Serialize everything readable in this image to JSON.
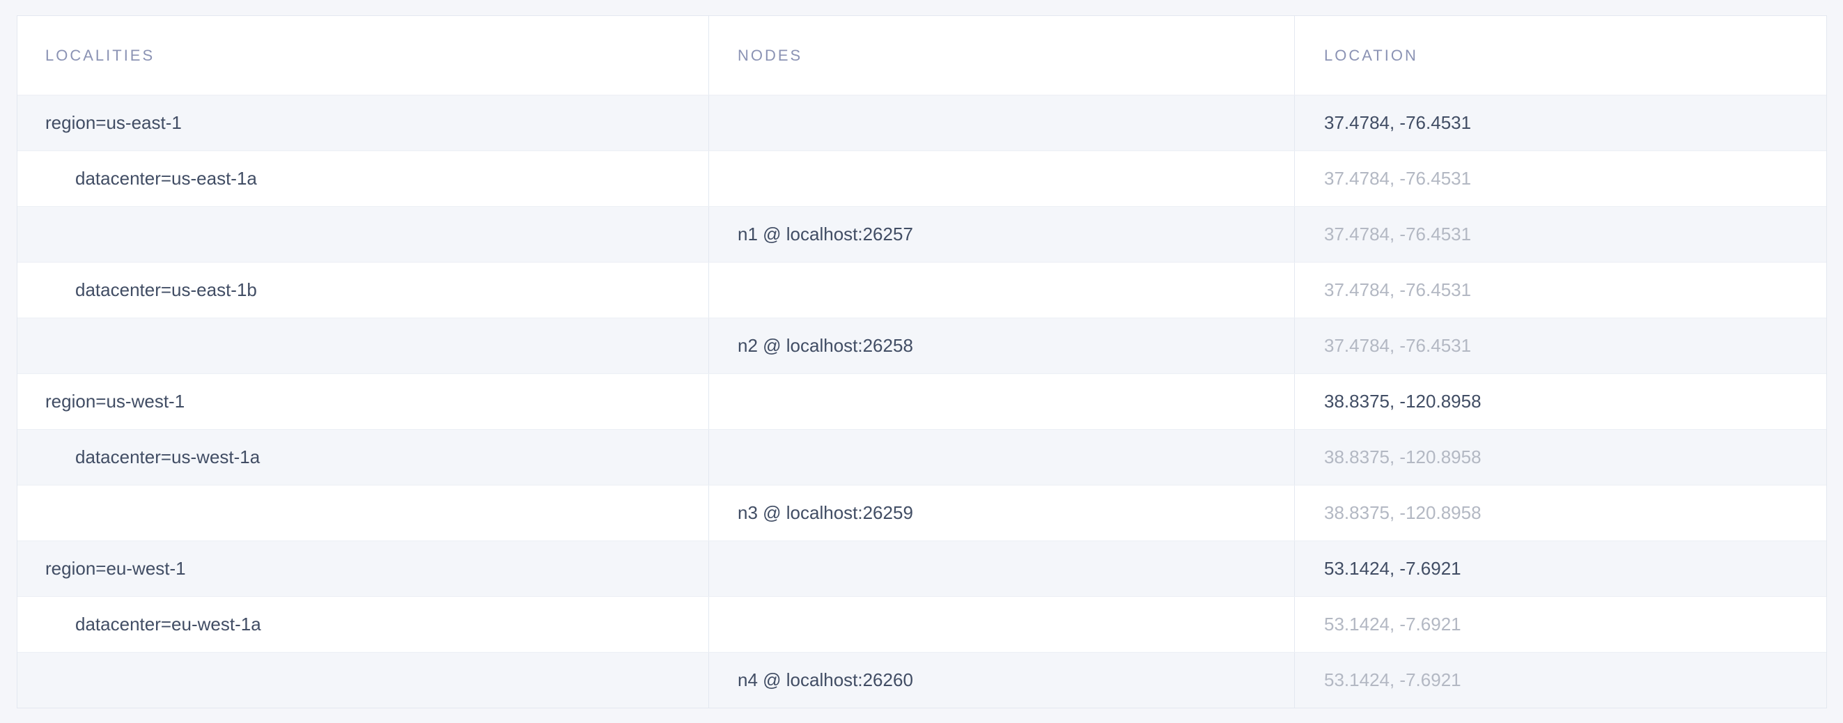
{
  "colors": {
    "page_background": "#f5f6fa",
    "row_stripe": "#f4f6fa",
    "table_border": "#e3e8f0",
    "header_text": "#8b93b4",
    "text_dark": "#414d64",
    "text_muted": "#b3b8c3"
  },
  "table": {
    "columns": [
      {
        "key": "localities",
        "label": "Localities"
      },
      {
        "key": "nodes",
        "label": "Nodes"
      },
      {
        "key": "location",
        "label": "Location"
      }
    ],
    "rows": [
      {
        "type": "region",
        "locality": "region=us-east-1",
        "node": "",
        "location": "37.4784, -76.4531",
        "location_emphasis": "dark"
      },
      {
        "type": "datacenter",
        "locality": "datacenter=us-east-1a",
        "node": "",
        "location": "37.4784, -76.4531",
        "location_emphasis": "muted"
      },
      {
        "type": "node",
        "locality": "",
        "node": "n1 @ localhost:26257",
        "location": "37.4784, -76.4531",
        "location_emphasis": "muted"
      },
      {
        "type": "datacenter",
        "locality": "datacenter=us-east-1b",
        "node": "",
        "location": "37.4784, -76.4531",
        "location_emphasis": "muted"
      },
      {
        "type": "node",
        "locality": "",
        "node": "n2 @ localhost:26258",
        "location": "37.4784, -76.4531",
        "location_emphasis": "muted"
      },
      {
        "type": "region",
        "locality": "region=us-west-1",
        "node": "",
        "location": "38.8375, -120.8958",
        "location_emphasis": "dark"
      },
      {
        "type": "datacenter",
        "locality": "datacenter=us-west-1a",
        "node": "",
        "location": "38.8375, -120.8958",
        "location_emphasis": "muted"
      },
      {
        "type": "node",
        "locality": "",
        "node": "n3 @ localhost:26259",
        "location": "38.8375, -120.8958",
        "location_emphasis": "muted"
      },
      {
        "type": "region",
        "locality": "region=eu-west-1",
        "node": "",
        "location": "53.1424, -7.6921",
        "location_emphasis": "dark"
      },
      {
        "type": "datacenter",
        "locality": "datacenter=eu-west-1a",
        "node": "",
        "location": "53.1424, -7.6921",
        "location_emphasis": "muted"
      },
      {
        "type": "node",
        "locality": "",
        "node": "n4 @ localhost:26260",
        "location": "53.1424, -7.6921",
        "location_emphasis": "muted"
      }
    ]
  }
}
